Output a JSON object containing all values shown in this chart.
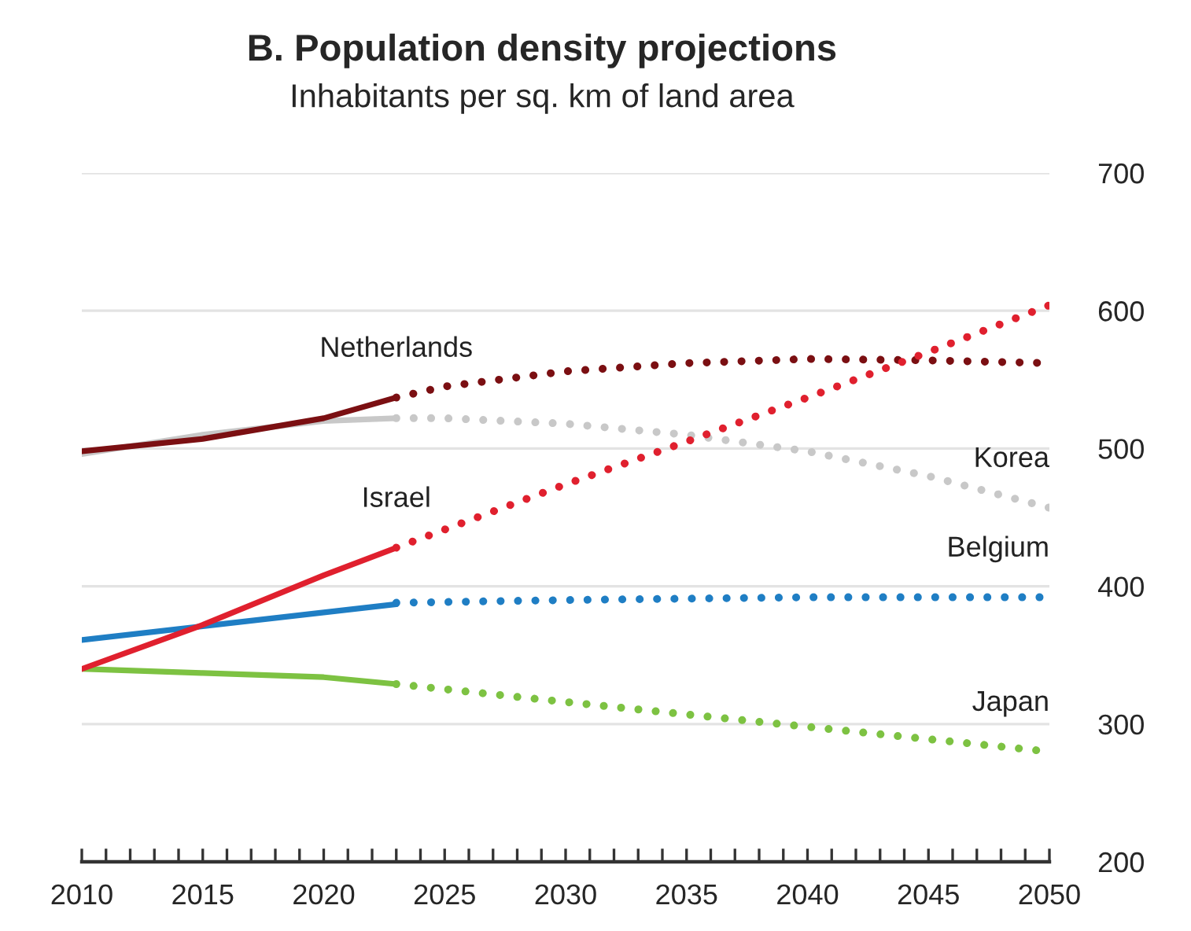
{
  "chart_data": {
    "type": "line",
    "title": "B. Population density projections",
    "subtitle": "Inhabitants per sq. km of land area",
    "series": [
      {
        "color": "#c8c8c8",
        "line_style": "solid",
        "x": [
          2010,
          2015,
          2020,
          2023
        ],
        "values": [
          496,
          510,
          520,
          522
        ]
      },
      {
        "name": "Korea",
        "color": "#c8c8c8",
        "line_style": "dotted",
        "x": [
          2023,
          2025,
          2030,
          2035,
          2040,
          2045,
          2050
        ],
        "values": [
          522,
          522,
          518,
          510,
          498,
          480,
          457
        ]
      },
      {
        "name": "Netherlands",
        "color": "#7b0f12",
        "line_style": "solid",
        "x": [
          2010,
          2015,
          2020,
          2023
        ],
        "values": [
          498,
          507,
          522,
          537
        ]
      },
      {
        "color": "#7b0f12",
        "line_style": "dotted",
        "x": [
          2023,
          2025,
          2030,
          2035,
          2040,
          2045,
          2050
        ],
        "values": [
          537,
          545,
          556,
          562,
          565,
          564,
          562
        ]
      },
      {
        "color": "#1f7ec4",
        "line_style": "solid",
        "x": [
          2010,
          2015,
          2020,
          2023
        ],
        "values": [
          361,
          371,
          381,
          387
        ]
      },
      {
        "name": "Belgium",
        "color": "#1f7ec4",
        "line_style": "dotted",
        "x": [
          2023,
          2030,
          2040,
          2050
        ],
        "values": [
          388,
          390,
          392,
          392
        ]
      },
      {
        "color": "#7dc242",
        "line_style": "solid",
        "x": [
          2010,
          2015,
          2020,
          2023
        ],
        "values": [
          340,
          337,
          334,
          329
        ]
      },
      {
        "name": "Japan",
        "color": "#7dc242",
        "line_style": "dotted",
        "x": [
          2023,
          2030,
          2035,
          2040,
          2045,
          2050
        ],
        "values": [
          329,
          316,
          307,
          298,
          289,
          280
        ]
      },
      {
        "name": "Israel",
        "color": "#e0202e",
        "line_style": "solid",
        "x": [
          2010,
          2015,
          2020,
          2023
        ],
        "values": [
          340,
          372,
          408,
          428
        ]
      },
      {
        "color": "#e0202e",
        "line_style": "dotted",
        "x": [
          2023,
          2030,
          2035,
          2040,
          2045,
          2050
        ],
        "values": [
          428,
          474,
          505,
          537,
          570,
          604
        ]
      }
    ],
    "xlim": [
      2010,
      2050
    ],
    "xticks": [
      2010,
      {
        "value": 2011,
        "label": null
      },
      {
        "value": 2012,
        "label": null
      },
      {
        "value": 2013,
        "label": null
      },
      {
        "value": 2014,
        "label": null
      },
      2015,
      {
        "value": 2016,
        "label": null
      },
      {
        "value": 2017,
        "label": null
      },
      {
        "value": 2018,
        "label": null
      },
      {
        "value": 2019,
        "label": null
      },
      2020,
      {
        "value": 2021,
        "label": null
      },
      {
        "value": 2022,
        "label": null
      },
      {
        "value": 2023,
        "label": null
      },
      {
        "value": 2024,
        "label": null
      },
      2025,
      {
        "value": 2026,
        "label": null
      },
      {
        "value": 2027,
        "label": null
      },
      {
        "value": 2028,
        "label": null
      },
      {
        "value": 2029,
        "label": null
      },
      2030,
      {
        "value": 2031,
        "label": null
      },
      {
        "value": 2032,
        "label": null
      },
      {
        "value": 2033,
        "label": null
      },
      {
        "value": 2034,
        "label": null
      },
      2035,
      {
        "value": 2036,
        "label": null
      },
      {
        "value": 2037,
        "label": null
      },
      {
        "value": 2038,
        "label": null
      },
      {
        "value": 2039,
        "label": null
      },
      2040,
      {
        "value": 2041,
        "label": null
      },
      {
        "value": 2042,
        "label": null
      },
      {
        "value": 2043,
        "label": null
      },
      {
        "value": 2044,
        "label": null
      },
      2045,
      {
        "value": 2046,
        "label": null
      },
      {
        "value": 2047,
        "label": null
      },
      {
        "value": 2048,
        "label": null
      },
      {
        "value": 2049,
        "label": null
      },
      2050
    ],
    "ylim": [
      200,
      700
    ],
    "yticks": [
      200,
      300,
      400,
      500,
      600,
      700
    ],
    "grid": "y",
    "legend": false,
    "marker": "none"
  }
}
